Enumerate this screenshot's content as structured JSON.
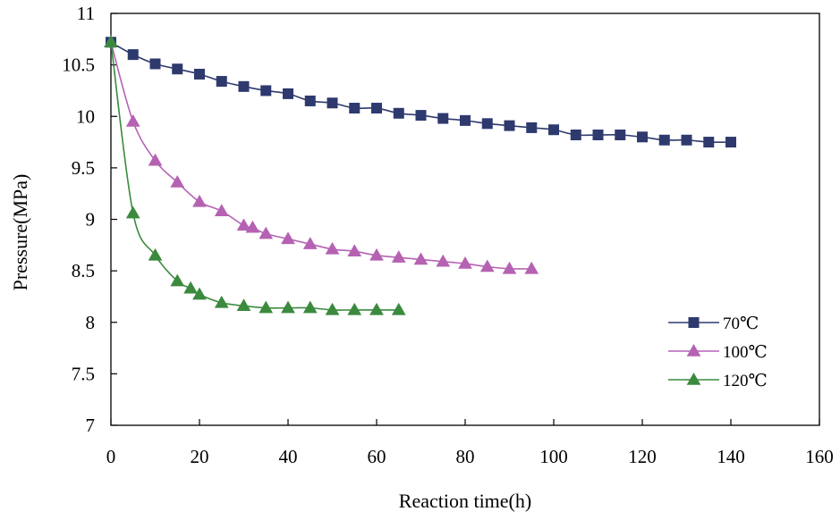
{
  "chart_data": {
    "type": "line",
    "xlabel": "Reaction time(h)",
    "ylabel": "Pressure(MPa)",
    "xlim": [
      0,
      160
    ],
    "ylim": [
      7,
      11
    ],
    "xticks": [
      "0",
      "20",
      "40",
      "60",
      "80",
      "100",
      "120",
      "140",
      "160"
    ],
    "yticks": [
      "7",
      "7.5",
      "8",
      "8.5",
      "9",
      "9.5",
      "10",
      "10.5",
      "11"
    ],
    "grid": false,
    "legend_position": "bottom-right",
    "series": [
      {
        "name": "70℃",
        "marker": "square",
        "color": "#2e3a6e",
        "x": [
          0,
          5,
          10,
          15,
          20,
          25,
          30,
          35,
          40,
          45,
          50,
          55,
          60,
          65,
          70,
          75,
          80,
          85,
          90,
          95,
          100,
          105,
          110,
          115,
          120,
          125,
          130,
          135,
          140
        ],
        "y": [
          10.72,
          10.6,
          10.51,
          10.46,
          10.41,
          10.34,
          10.29,
          10.25,
          10.22,
          10.15,
          10.13,
          10.08,
          10.08,
          10.03,
          10.01,
          9.98,
          9.96,
          9.93,
          9.91,
          9.89,
          9.87,
          9.82,
          9.82,
          9.82,
          9.8,
          9.77,
          9.77,
          9.75,
          9.75
        ]
      },
      {
        "name": "100℃",
        "marker": "triangle",
        "color": "#b562b3",
        "x": [
          0,
          5,
          10,
          15,
          20,
          25,
          30,
          32,
          35,
          40,
          45,
          50,
          55,
          60,
          65,
          70,
          75,
          80,
          85,
          90,
          95
        ],
        "y": [
          10.72,
          9.95,
          9.57,
          9.36,
          9.17,
          9.08,
          8.94,
          8.92,
          8.86,
          8.81,
          8.76,
          8.71,
          8.69,
          8.65,
          8.63,
          8.61,
          8.59,
          8.57,
          8.54,
          8.52,
          8.52
        ]
      },
      {
        "name": "120℃",
        "marker": "triangle",
        "color": "#3b8a3e",
        "x": [
          0,
          5,
          10,
          15,
          18,
          20,
          25,
          30,
          35,
          40,
          45,
          50,
          55,
          60,
          65
        ],
        "y": [
          10.72,
          9.06,
          8.65,
          8.4,
          8.33,
          8.27,
          8.19,
          8.16,
          8.14,
          8.14,
          8.14,
          8.12,
          8.12,
          8.12,
          8.12
        ]
      }
    ]
  }
}
